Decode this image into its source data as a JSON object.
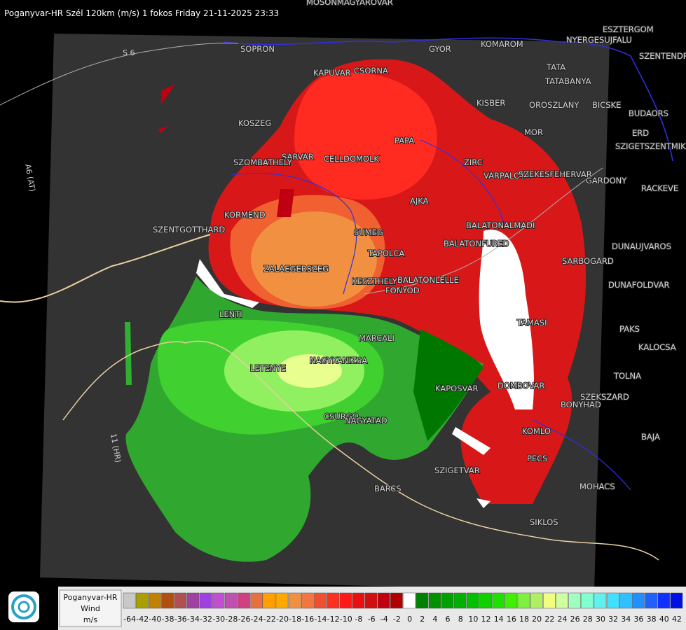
{
  "header": {
    "title": "Poganyvar-HR Szél 120km (m/s) 1 fokos Friday 21-11-2025 23:33"
  },
  "places": [
    "MOSONMAGYAROVAR",
    "ESZTERGOM",
    "NYERGESUJFALU",
    "SZENTENDRE",
    "SOPRON",
    "GYOR",
    "KOMAROM",
    "TATA",
    "TATABANYA",
    "KAPUVAR",
    "CSORNA",
    "KISBER",
    "OROSZLANY",
    "BICSKE",
    "BUDAORS",
    "KOSZEG",
    "MOR",
    "ERD",
    "SZIGETSZENTMIKLOS",
    "PAPA",
    "SARVAR",
    "CELLDOMOLK",
    "SZOMBATHELY",
    "ZIRC",
    "VARPALOTA",
    "SZEKESFEHERVAR",
    "GARDONY",
    "RACKEVE",
    "AJKA",
    "KORMEND",
    "SZENTGOTTHARD",
    "BALATONALMADI",
    "SUMEG",
    "TAPOLCA",
    "BALATONFURED",
    "ZALAEGERSZEG",
    "KESZTHELY",
    "BALATONLELLE",
    "FONYOD",
    "DUNAUJVAROS",
    "SARBOGARD",
    "DUNAFOLDVAR",
    "LENTI",
    "MARCALI",
    "TAMASI",
    "PAKS",
    "KALOCSA",
    "NAGYKANIZSA",
    "LETENYE",
    "TOLNA",
    "KAPOSVAR",
    "DOMBOVAR",
    "SZEKSZARD",
    "BONYHAD",
    "CSURGO",
    "NAGYATAD",
    "KOMLO",
    "BAJA",
    "PECS",
    "SZIGETVAR",
    "MOHACS",
    "BARCS",
    "SIKLOS"
  ],
  "roads": [
    "S 6",
    "A6 (AT)",
    "11 (HR)"
  ],
  "legend": {
    "station": "Poganyvar-HR",
    "quantity": "Wind",
    "unit": "m/s",
    "scale": [
      {
        "value": -64,
        "color": "#c8c8c8"
      },
      {
        "value": -42,
        "color": "#a8a000"
      },
      {
        "value": -40,
        "color": "#c08000"
      },
      {
        "value": -38,
        "color": "#b05010"
      },
      {
        "value": -36,
        "color": "#b05050"
      },
      {
        "value": -34,
        "color": "#a040a0"
      },
      {
        "value": -32,
        "color": "#a040e0"
      },
      {
        "value": -30,
        "color": "#c050d0"
      },
      {
        "value": -28,
        "color": "#c050b0"
      },
      {
        "value": -26,
        "color": "#d04080"
      },
      {
        "value": -24,
        "color": "#e87040"
      },
      {
        "value": -22,
        "color": "#ffa000"
      },
      {
        "value": -20,
        "color": "#ffa800"
      },
      {
        "value": -18,
        "color": "#f09040"
      },
      {
        "value": -16,
        "color": "#f07840"
      },
      {
        "value": -14,
        "color": "#f05030"
      },
      {
        "value": -12,
        "color": "#ff3020"
      },
      {
        "value": -10,
        "color": "#ff1818"
      },
      {
        "value": -8,
        "color": "#e81010"
      },
      {
        "value": -6,
        "color": "#d01010"
      },
      {
        "value": -4,
        "color": "#c00010"
      },
      {
        "value": -2,
        "color": "#b00000"
      },
      {
        "value": 0,
        "color": "#ffffff"
      },
      {
        "value": 2,
        "color": "#008000"
      },
      {
        "value": 4,
        "color": "#009000"
      },
      {
        "value": 6,
        "color": "#00a000"
      },
      {
        "value": 8,
        "color": "#00b000"
      },
      {
        "value": 10,
        "color": "#00c000"
      },
      {
        "value": 12,
        "color": "#10d000"
      },
      {
        "value": 14,
        "color": "#20e000"
      },
      {
        "value": 16,
        "color": "#40f000"
      },
      {
        "value": 18,
        "color": "#80f040"
      },
      {
        "value": 20,
        "color": "#b0f060"
      },
      {
        "value": 22,
        "color": "#f0ff80"
      },
      {
        "value": 24,
        "color": "#d0ffa0"
      },
      {
        "value": 26,
        "color": "#a0ffc0"
      },
      {
        "value": 28,
        "color": "#80ffd0"
      },
      {
        "value": 30,
        "color": "#60f0f0"
      },
      {
        "value": 32,
        "color": "#40e0ff"
      },
      {
        "value": 34,
        "color": "#30c0ff"
      },
      {
        "value": 36,
        "color": "#2090ff"
      },
      {
        "value": 38,
        "color": "#2060ff"
      },
      {
        "value": 40,
        "color": "#1030ff"
      },
      {
        "value": 42,
        "color": "#0010e0"
      }
    ]
  }
}
